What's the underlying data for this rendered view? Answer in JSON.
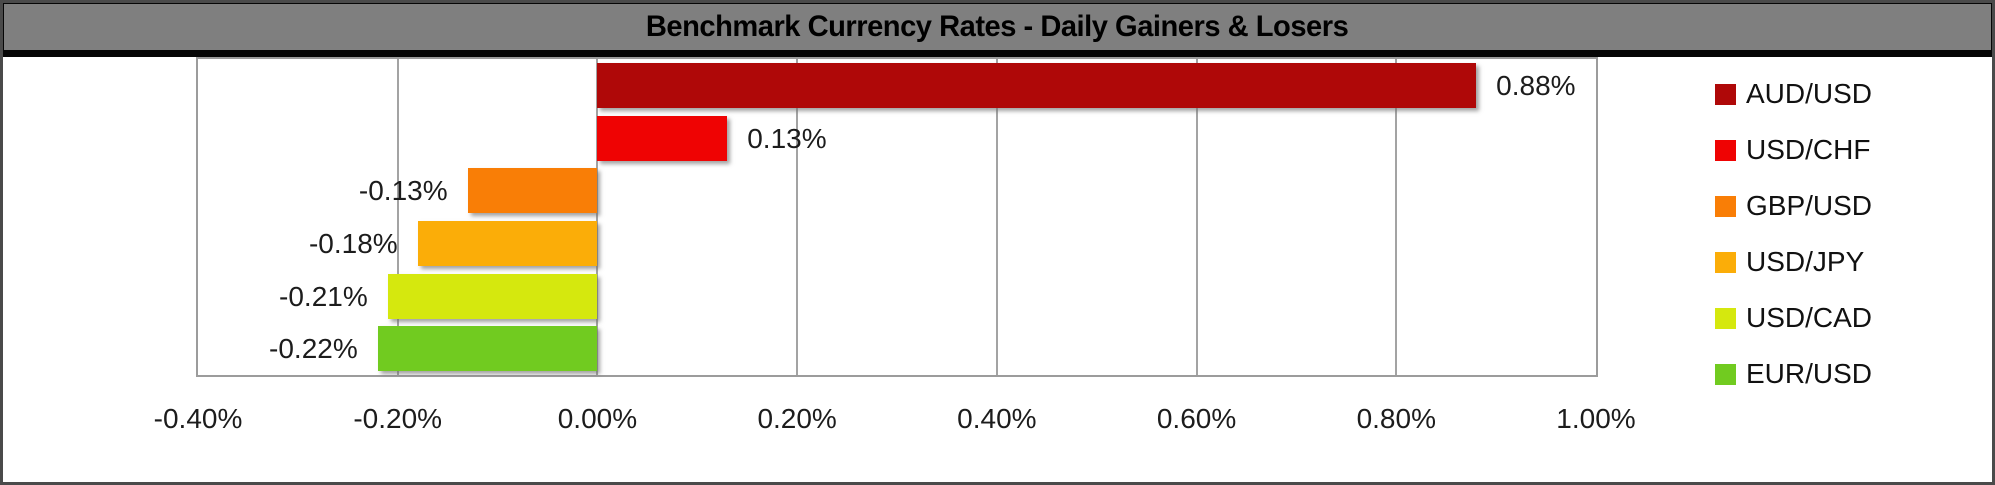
{
  "title": "Benchmark Currency Rates - Daily Gainers & Losers",
  "chart_data": {
    "type": "bar",
    "orientation": "horizontal",
    "title": "Benchmark Currency Rates - Daily Gainers & Losers",
    "series": [
      {
        "name": "AUD/USD",
        "value": 0.88,
        "label": "0.88%",
        "color": "#AF0808"
      },
      {
        "name": "USD/CHF",
        "value": 0.13,
        "label": "0.13%",
        "color": "#EF0303"
      },
      {
        "name": "GBP/USD",
        "value": -0.13,
        "label": "-0.13%",
        "color": "#F97E06"
      },
      {
        "name": "USD/JPY",
        "value": -0.18,
        "label": "-0.18%",
        "color": "#FBAD08"
      },
      {
        "name": "USD/CAD",
        "value": -0.21,
        "label": "-0.21%",
        "color": "#D5E80E"
      },
      {
        "name": "EUR/USD",
        "value": -0.22,
        "label": "-0.22%",
        "color": "#71CB20"
      }
    ],
    "xlabel": "",
    "ylabel": "",
    "xlim": [
      -0.4,
      1.0
    ],
    "x_ticks": [
      {
        "value": -0.4,
        "label": "-0.40%"
      },
      {
        "value": -0.2,
        "label": "-0.20%"
      },
      {
        "value": 0.0,
        "label": "0.00%"
      },
      {
        "value": 0.2,
        "label": "0.20%"
      },
      {
        "value": 0.4,
        "label": "0.40%"
      },
      {
        "value": 0.6,
        "label": "0.60%"
      },
      {
        "value": 0.8,
        "label": "0.80%"
      },
      {
        "value": 1.0,
        "label": "1.00%"
      }
    ],
    "grid": true,
    "legend_position": "right"
  },
  "colors": {
    "title_bg": "#7F7F7F",
    "title_text": "#000000",
    "frame_border": "#4A4A4A",
    "plot_border": "#9C9C9C",
    "gridline": "#A3A3A3",
    "background": "#FFFFFF",
    "label_text": "#1C1C1C"
  }
}
